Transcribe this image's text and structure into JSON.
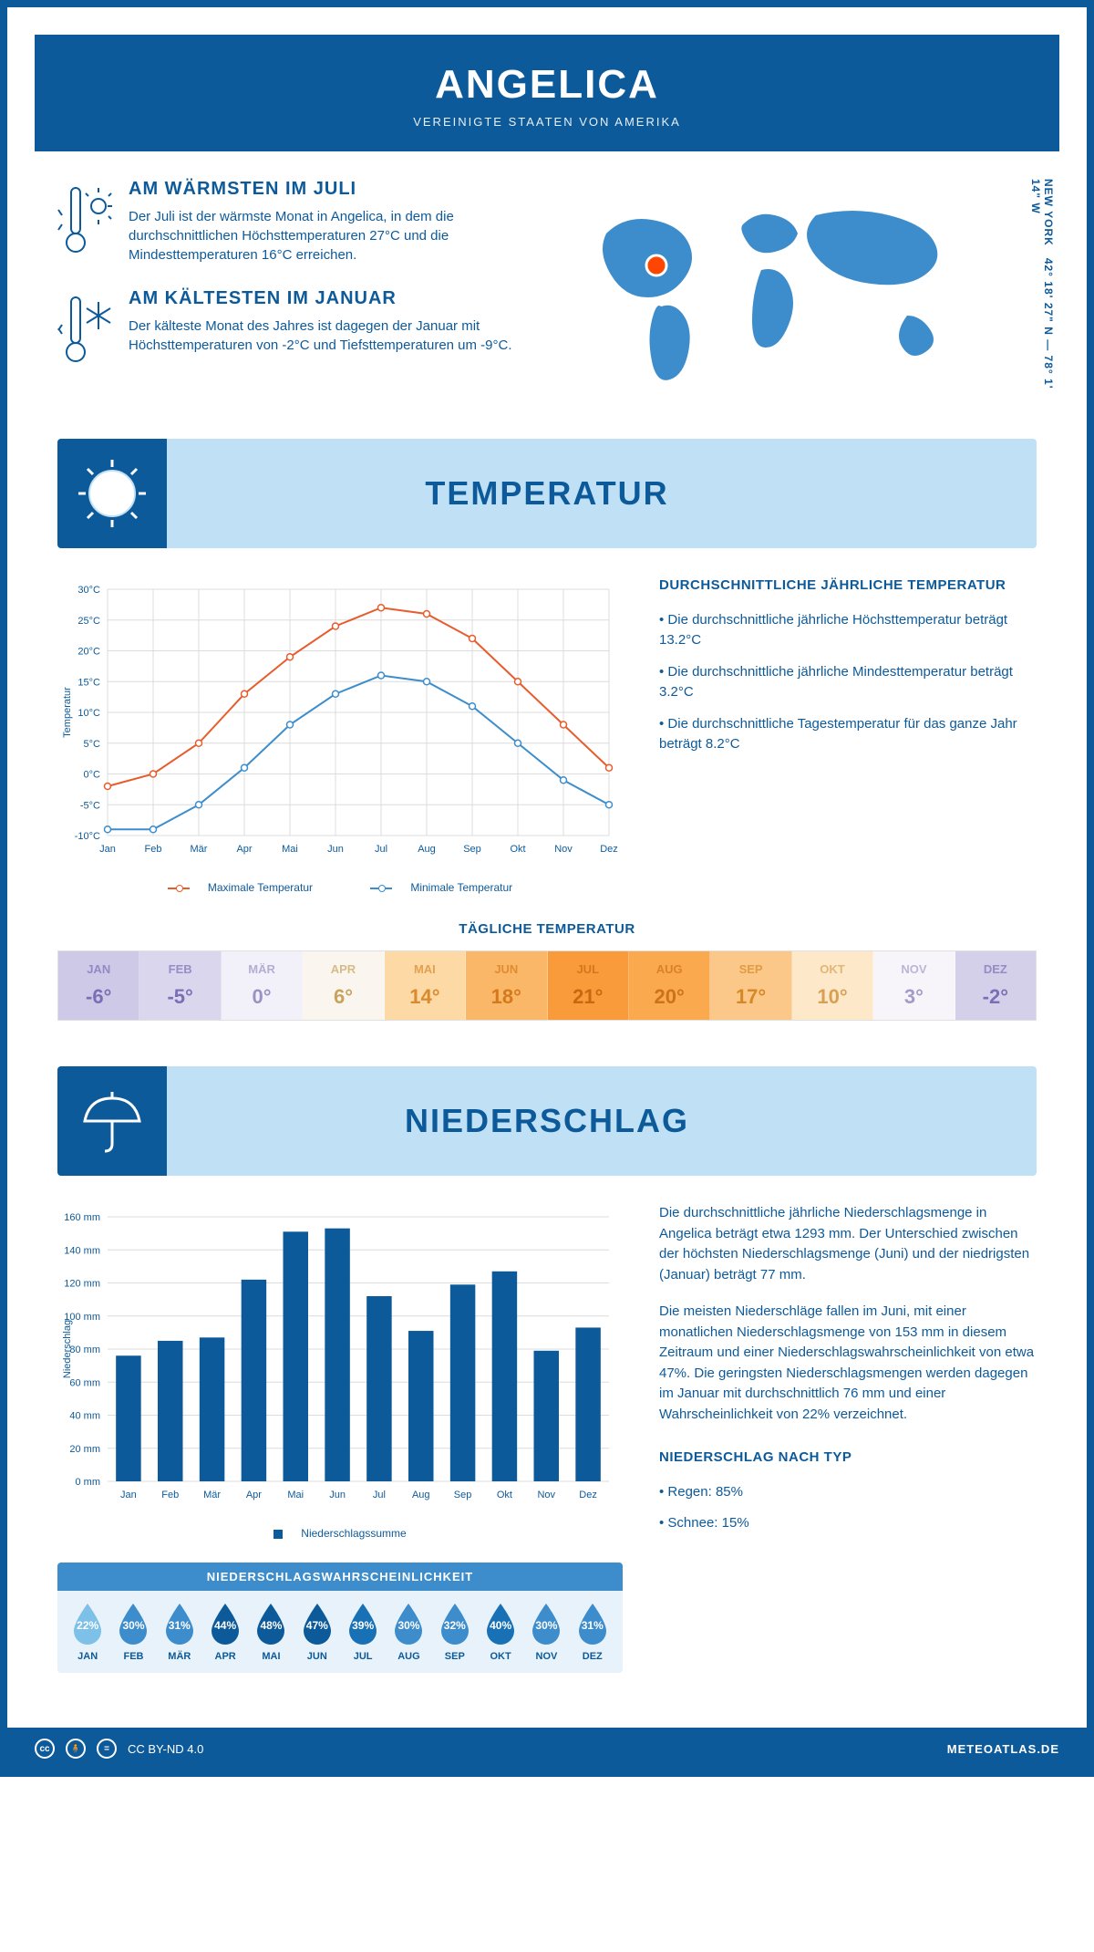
{
  "header": {
    "title": "ANGELICA",
    "subtitle": "VEREINIGTE STAATEN VON AMERIKA"
  },
  "coords": {
    "lat": "42° 18' 27\" N",
    "lon": "78° 1' 14\" W",
    "region": "NEW YORK"
  },
  "facts": {
    "warm": {
      "title": "AM WÄRMSTEN IM JULI",
      "text": "Der Juli ist der wärmste Monat in Angelica, in dem die durchschnittlichen Höchsttemperaturen 27°C und die Mindesttemperaturen 16°C erreichen."
    },
    "cold": {
      "title": "AM KÄLTESTEN IM JANUAR",
      "text": "Der kälteste Monat des Jahres ist dagegen der Januar mit Höchsttemperaturen von -2°C und Tiefsttemperaturen um -9°C."
    }
  },
  "temp_section": {
    "title": "TEMPERATUR",
    "chart": {
      "type": "line",
      "months": [
        "Jan",
        "Feb",
        "Mär",
        "Apr",
        "Mai",
        "Jun",
        "Jul",
        "Aug",
        "Sep",
        "Okt",
        "Nov",
        "Dez"
      ],
      "max_series": [
        -2,
        0,
        5,
        13,
        19,
        24,
        27,
        26,
        22,
        15,
        8,
        1
      ],
      "min_series": [
        -9,
        -9,
        -5,
        1,
        8,
        13,
        16,
        15,
        11,
        5,
        -1,
        -5
      ],
      "max_color": "#e85c2c",
      "min_color": "#3d8dcc",
      "ylim": [
        -10,
        30
      ],
      "ytick_step": 5,
      "ylabel": "Temperatur",
      "grid_color": "#dcdcdc",
      "background": "#ffffff",
      "line_width": 2,
      "marker": "circle",
      "legend": {
        "max": "Maximale Temperatur",
        "min": "Minimale Temperatur"
      }
    },
    "info": {
      "heading": "DURCHSCHNITTLICHE JÄHRLICHE TEMPERATUR",
      "bullets": [
        "• Die durchschnittliche jährliche Höchsttemperatur beträgt 13.2°C",
        "• Die durchschnittliche jährliche Mindesttemperatur beträgt 3.2°C",
        "• Die durchschnittliche Tagestemperatur für das ganze Jahr beträgt 8.2°C"
      ]
    },
    "daily": {
      "heading": "TÄGLICHE TEMPERATUR",
      "months": [
        "JAN",
        "FEB",
        "MÄR",
        "APR",
        "MAI",
        "JUN",
        "JUL",
        "AUG",
        "SEP",
        "OKT",
        "NOV",
        "DEZ"
      ],
      "values": [
        "-6°",
        "-5°",
        "0°",
        "6°",
        "14°",
        "18°",
        "21°",
        "20°",
        "17°",
        "10°",
        "3°",
        "-2°"
      ],
      "bg_colors": [
        "#cfc9e8",
        "#dad6ed",
        "#f2f0f8",
        "#faf6ef",
        "#fdd9a6",
        "#fbb768",
        "#f99b3a",
        "#faa94f",
        "#fcc88a",
        "#fde8c9",
        "#f7f5fa",
        "#d5d0ea"
      ],
      "text_colors": [
        "#7a6fb5",
        "#7a6fb5",
        "#9a92c5",
        "#c9a35c",
        "#d88a2c",
        "#d47a1c",
        "#c86812",
        "#cc7218",
        "#d68826",
        "#d9a053",
        "#a39bc8",
        "#7a6fb5"
      ]
    }
  },
  "precip_section": {
    "title": "NIEDERSCHLAG",
    "chart": {
      "type": "bar",
      "months": [
        "Jan",
        "Feb",
        "Mär",
        "Apr",
        "Mai",
        "Jun",
        "Jul",
        "Aug",
        "Sep",
        "Okt",
        "Nov",
        "Dez"
      ],
      "values": [
        76,
        85,
        87,
        122,
        151,
        153,
        112,
        91,
        119,
        127,
        79,
        93
      ],
      "bar_color": "#0d5a9a",
      "ylim": [
        0,
        160
      ],
      "ytick_step": 20,
      "ylabel": "Niederschlag",
      "grid_color": "#dcdcdc",
      "background": "#ffffff",
      "bar_width": 0.6,
      "legend": "Niederschlagssumme"
    },
    "prob": {
      "heading": "NIEDERSCHLAGSWAHRSCHEINLICHKEIT",
      "months": [
        "JAN",
        "FEB",
        "MÄR",
        "APR",
        "MAI",
        "JUN",
        "JUL",
        "AUG",
        "SEP",
        "OKT",
        "NOV",
        "DEZ"
      ],
      "values": [
        "22%",
        "30%",
        "31%",
        "44%",
        "48%",
        "47%",
        "39%",
        "30%",
        "32%",
        "40%",
        "30%",
        "31%"
      ],
      "drop_colors": [
        "#7dc0e8",
        "#3d8dcc",
        "#3d8dcc",
        "#0d5a9a",
        "#0d5a9a",
        "#0d5a9a",
        "#1971b5",
        "#3d8dcc",
        "#3d8dcc",
        "#1971b5",
        "#3d8dcc",
        "#3d8dcc"
      ]
    },
    "text": {
      "p1": "Die durchschnittliche jährliche Niederschlagsmenge in Angelica beträgt etwa 1293 mm. Der Unterschied zwischen der höchsten Niederschlagsmenge (Juni) und der niedrigsten (Januar) beträgt 77 mm.",
      "p2": "Die meisten Niederschläge fallen im Juni, mit einer monatlichen Niederschlagsmenge von 153 mm in diesem Zeitraum und einer Niederschlagswahrscheinlichkeit von etwa 47%. Die geringsten Niederschlagsmengen werden dagegen im Januar mit durchschnittlich 76 mm und einer Wahrscheinlichkeit von 22% verzeichnet.",
      "type_heading": "NIEDERSCHLAG NACH TYP",
      "type_bullets": [
        "• Regen: 85%",
        "• Schnee: 15%"
      ]
    }
  },
  "footer": {
    "license": "CC BY-ND 4.0",
    "site": "METEOATLAS.DE"
  }
}
